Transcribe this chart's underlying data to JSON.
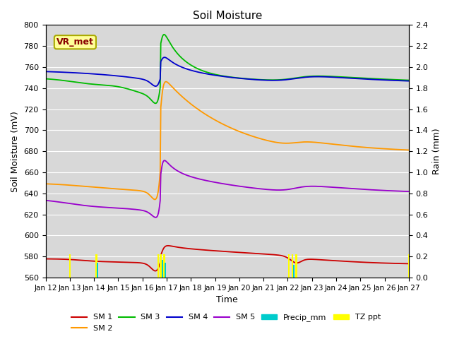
{
  "title": "Soil Moisture",
  "xlabel": "Time",
  "ylabel_left": "Soil Moisture (mV)",
  "ylabel_right": "Rain (mm)",
  "ylim_left": [
    560,
    800
  ],
  "ylim_right": [
    0.0,
    2.4
  ],
  "date_labels": [
    "Jan 12",
    "Jan 13",
    "Jan 14",
    "Jan 15",
    "Jan 16",
    "Jan 17",
    "Jan 18",
    "Jan 19",
    "Jan 20",
    "Jan 21",
    "Jan 22",
    "Jan 23",
    "Jan 24",
    "Jan 25",
    "Jan 26",
    "Jan 27"
  ],
  "background_color": "#d8d8d8",
  "sm1_color": "#cc0000",
  "sm2_color": "#ff9900",
  "sm3_color": "#00bb00",
  "sm4_color": "#0000cc",
  "sm5_color": "#9900cc",
  "precip_color": "#00cccc",
  "tzppt_color": "#ffff00",
  "vr_met_text_color": "#880000",
  "vr_met_bg": "#ffff99",
  "vr_met_border": "#aaaa00",
  "tzppt_days": [
    1.0,
    2.1,
    4.65,
    4.75,
    4.9,
    10.05,
    10.2,
    10.35,
    15.0
  ],
  "tzppt_mm": [
    0.22,
    0.22,
    0.22,
    0.22,
    0.22,
    0.22,
    0.22,
    0.22,
    0.22
  ],
  "precip_days": [
    2.15,
    4.82,
    4.95,
    10.25
  ],
  "precip_mm": [
    0.14,
    0.17,
    0.14,
    0.12
  ]
}
